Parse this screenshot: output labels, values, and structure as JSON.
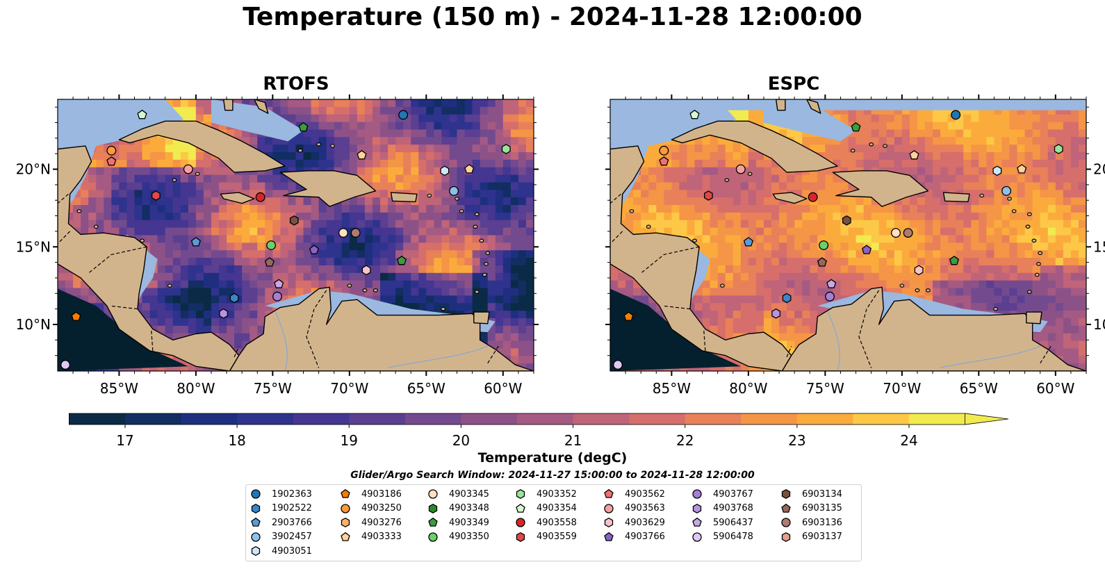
{
  "title": "Temperature (150 m) - 2024-11-28 12:00:00",
  "panels": [
    {
      "title": "RTOFS",
      "model": "rtofs"
    },
    {
      "title": "ESPC",
      "model": "espc"
    }
  ],
  "map": {
    "lon_range": [
      -89,
      -58
    ],
    "lat_range": [
      7,
      24.5
    ],
    "lon_ticks": [
      "85°W",
      "80°W",
      "75°W",
      "70°W",
      "65°W",
      "60°W"
    ],
    "lat_ticks": [
      "20°N",
      "15°N",
      "10°N"
    ],
    "colors": {
      "ocean_shallow": "#9ab8e0",
      "land": "#d2b48c",
      "coast": "#000000"
    }
  },
  "colorbar": {
    "label": "Temperature (degC)",
    "range": [
      16.5,
      24.5
    ],
    "ticks": [
      "17",
      "18",
      "19",
      "20",
      "21",
      "22",
      "23",
      "24"
    ],
    "extend": "both",
    "colormap": "thermal"
  },
  "legend": {
    "title": "Glider/Argo Search Window: 2024-11-27 15:00:00 to 2024-11-28 12:00:00",
    "columns": [
      [
        {
          "id": "1902363",
          "marker": "circle",
          "color": "#1f77b4"
        },
        {
          "id": "1902522",
          "marker": "hexagon",
          "color": "#3a86c8"
        },
        {
          "id": "2903766",
          "marker": "pentagon",
          "color": "#5b9bd5"
        },
        {
          "id": "3902457",
          "marker": "circle",
          "color": "#8fc1e8"
        },
        {
          "id": "4903051",
          "marker": "hexagon",
          "color": "#cfe8f7"
        }
      ],
      [
        {
          "id": "4903186",
          "marker": "pentagon",
          "color": "#f57c00"
        },
        {
          "id": "4903250",
          "marker": "circle",
          "color": "#ff9a3c"
        },
        {
          "id": "4903276",
          "marker": "hexagon",
          "color": "#ffb26b"
        },
        {
          "id": "4903333",
          "marker": "pentagon",
          "color": "#ffd19b"
        }
      ],
      [
        {
          "id": "4903345",
          "marker": "circle",
          "color": "#ffe0c2"
        },
        {
          "id": "4903348",
          "marker": "hexagon",
          "color": "#2a8a2a"
        },
        {
          "id": "4903349",
          "marker": "pentagon",
          "color": "#3a9e3a"
        },
        {
          "id": "4903350",
          "marker": "circle",
          "color": "#6ccf6c"
        }
      ],
      [
        {
          "id": "4903352",
          "marker": "hexagon",
          "color": "#98e598"
        },
        {
          "id": "4903354",
          "marker": "pentagon",
          "color": "#d6f7d0"
        },
        {
          "id": "4903558",
          "marker": "circle",
          "color": "#d62728"
        },
        {
          "id": "4903559",
          "marker": "hexagon",
          "color": "#e04848"
        }
      ],
      [
        {
          "id": "4903562",
          "marker": "pentagon",
          "color": "#f07070"
        },
        {
          "id": "4903563",
          "marker": "circle",
          "color": "#f5a0a0"
        },
        {
          "id": "4903629",
          "marker": "hexagon",
          "color": "#f8c2cc"
        },
        {
          "id": "4903766",
          "marker": "pentagon",
          "color": "#8a63c4"
        }
      ],
      [
        {
          "id": "4903767",
          "marker": "circle",
          "color": "#a57fd6"
        },
        {
          "id": "4903768",
          "marker": "hexagon",
          "color": "#b894e0"
        },
        {
          "id": "5906437",
          "marker": "pentagon",
          "color": "#c8a8ea"
        },
        {
          "id": "5906478",
          "marker": "circle",
          "color": "#e0c8f5"
        }
      ],
      [
        {
          "id": "6903134",
          "marker": "hexagon",
          "color": "#7a5040"
        },
        {
          "id": "6903135",
          "marker": "pentagon",
          "color": "#96685a"
        },
        {
          "id": "6903136",
          "marker": "circle",
          "color": "#b07a70"
        },
        {
          "id": "6903137",
          "marker": "hexagon",
          "color": "#e0a090"
        }
      ]
    ]
  },
  "floats": [
    {
      "id": "1902363",
      "lon": -66.5,
      "lat": 23.5
    },
    {
      "id": "4903354",
      "lon": -83.5,
      "lat": 23.5
    },
    {
      "id": "4903349",
      "lon": -73.0,
      "lat": 22.7
    },
    {
      "id": "4903250",
      "lon": -85.5,
      "lat": 21.2
    },
    {
      "id": "4903562",
      "lon": -85.5,
      "lat": 20.5
    },
    {
      "id": "4903333",
      "lon": -69.2,
      "lat": 20.9
    },
    {
      "id": "4903352",
      "lon": -59.8,
      "lat": 21.3
    },
    {
      "id": "4903563",
      "lon": -80.5,
      "lat": 20.0
    },
    {
      "id": "4903051",
      "lon": -63.8,
      "lat": 19.9
    },
    {
      "id": "4903333",
      "lon": -62.2,
      "lat": 20.0
    },
    {
      "id": "4903559",
      "lon": -82.6,
      "lat": 18.3
    },
    {
      "id": "4903558",
      "lon": -75.8,
      "lat": 18.2
    },
    {
      "id": "3902457",
      "lon": -63.2,
      "lat": 18.6
    },
    {
      "id": "6903134",
      "lon": -73.6,
      "lat": 16.7
    },
    {
      "id": "4903345",
      "lon": -70.4,
      "lat": 15.9
    },
    {
      "id": "6903136",
      "lon": -69.6,
      "lat": 15.9
    },
    {
      "id": "2903766",
      "lon": -80.0,
      "lat": 15.3
    },
    {
      "id": "4903350",
      "lon": -75.1,
      "lat": 15.1
    },
    {
      "id": "4903766",
      "lon": -72.3,
      "lat": 14.8
    },
    {
      "id": "6903135",
      "lon": -75.2,
      "lat": 14.0
    },
    {
      "id": "4903349",
      "lon": -66.6,
      "lat": 14.1
    },
    {
      "id": "4903629",
      "lon": -68.9,
      "lat": 13.5
    },
    {
      "id": "5906437",
      "lon": -74.6,
      "lat": 12.6
    },
    {
      "id": "1902522",
      "lon": -77.5,
      "lat": 11.7
    },
    {
      "id": "4903767",
      "lon": -74.7,
      "lat": 11.8
    },
    {
      "id": "4903768",
      "lon": -78.2,
      "lat": 10.7
    },
    {
      "id": "4903186",
      "lon": -87.8,
      "lat": 10.5
    },
    {
      "id": "5906478",
      "lon": -88.5,
      "lat": 7.4
    }
  ]
}
